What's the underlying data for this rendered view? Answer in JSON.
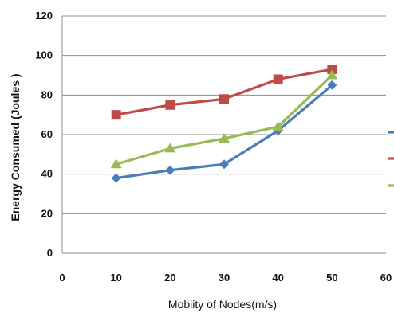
{
  "chart_data": {
    "type": "line",
    "title": "",
    "xlabel": "Mobiity of Nodes(m/s)",
    "ylabel": "Energy Consumed (Joules )",
    "xlim": [
      0,
      60
    ],
    "ylim": [
      0,
      120
    ],
    "x_ticks": [
      0,
      10,
      20,
      30,
      40,
      50,
      60
    ],
    "y_ticks": [
      0,
      20,
      40,
      60,
      80,
      100,
      120
    ],
    "grid": "horizontal",
    "x": [
      10,
      20,
      30,
      40,
      50
    ],
    "series": [
      {
        "values": [
          38,
          42,
          45,
          62,
          85
        ],
        "color": "#4a7ebb",
        "marker": "diamond"
      },
      {
        "values": [
          70,
          75,
          78,
          88,
          93
        ],
        "color": "#be4b48",
        "marker": "square"
      },
      {
        "values": [
          45,
          53,
          58,
          64,
          90
        ],
        "color": "#98b954",
        "marker": "triangle"
      }
    ]
  }
}
